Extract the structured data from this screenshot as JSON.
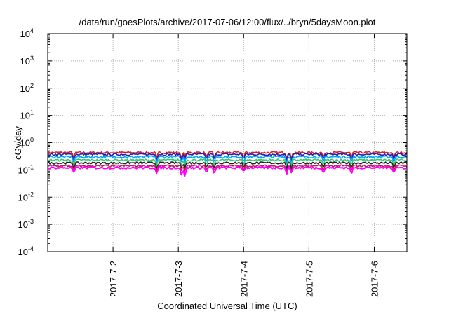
{
  "chart_data": {
    "type": "line",
    "title": "/data/run/goesPlots/archive/2017-07-06/12:00/flux/../bryn/5daysMoon.plot",
    "xlabel": "Coordinated Universal Time (UTC)",
    "ylabel": "cGy/day",
    "y_scale": "log",
    "ylim": [
      0.0001,
      10000
    ],
    "y_ticks": [
      {
        "base": "10",
        "exp": "4"
      },
      {
        "base": "10",
        "exp": "3"
      },
      {
        "base": "10",
        "exp": "2"
      },
      {
        "base": "10",
        "exp": "1"
      },
      {
        "base": "10",
        "exp": "0"
      },
      {
        "base": "10",
        "exp": "-1"
      },
      {
        "base": "10",
        "exp": "-2"
      },
      {
        "base": "10",
        "exp": "-3"
      },
      {
        "base": "10",
        "exp": "-4"
      }
    ],
    "xlim": [
      "2017-07-01 00:00",
      "2017-07-06 12:00"
    ],
    "x_ticks": [
      "2017-7-2",
      "2017-7-3",
      "2017-7-4",
      "2017-7-5",
      "2017-7-6"
    ],
    "grid": true,
    "legend": "none",
    "series": [
      {
        "color": "#e41a1c",
        "level": 0.43
      },
      {
        "color": "#1e22b0",
        "level": 0.37
      },
      {
        "color": "#00a0ff",
        "level": 0.3
      },
      {
        "color": "#2ecc71",
        "level": 0.23
      },
      {
        "color": "#222222",
        "level": 0.18
      },
      {
        "color": "#c2185b",
        "level": 0.14
      },
      {
        "color": "#ff00ff",
        "level": 0.12
      }
    ],
    "dips": [
      {
        "day": 0.4,
        "depth": 0.075
      },
      {
        "day": 1.67,
        "depth": 0.07
      },
      {
        "day": 2.05,
        "depth": 0.055
      },
      {
        "day": 2.1,
        "depth": 0.05
      },
      {
        "day": 2.43,
        "depth": 0.075
      },
      {
        "day": 2.55,
        "depth": 0.065
      },
      {
        "day": 3.0,
        "depth": 0.085
      },
      {
        "day": 3.66,
        "depth": 0.07
      },
      {
        "day": 3.73,
        "depth": 0.08
      },
      {
        "day": 4.22,
        "depth": 0.07
      },
      {
        "day": 4.65,
        "depth": 0.065
      },
      {
        "day": 5.3,
        "depth": 0.075
      }
    ]
  }
}
